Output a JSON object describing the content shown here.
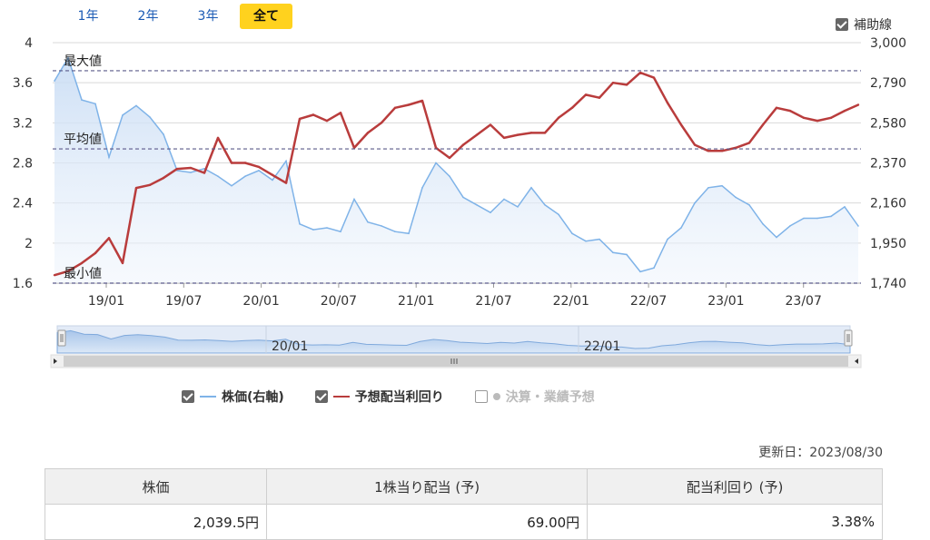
{
  "tabs": [
    {
      "label": "1年",
      "active": false
    },
    {
      "label": "2年",
      "active": false
    },
    {
      "label": "3年",
      "active": false
    },
    {
      "label": "全て",
      "active": true
    }
  ],
  "aux_lines_label": "補助線",
  "legend": {
    "stock": "株価(右軸)",
    "yield": "予想配当利回り",
    "earnings": "決算・業績予想"
  },
  "updated": "更新日：2023/08/30",
  "summary": {
    "headers": [
      "株価",
      "1株当り配当 (予)",
      "配当利回り (予)"
    ],
    "values": [
      "2,039.5円",
      "69.00円",
      "3.38%"
    ]
  },
  "colors": {
    "stock": "#7fb3e8",
    "yield": "#b93c3c",
    "tab_active": "#ffd21e"
  },
  "chart_data": {
    "type": "line",
    "left_axis": {
      "ticks": [
        "4",
        "3.6",
        "3.2",
        "2.8",
        "2.4",
        "2",
        "1.6"
      ],
      "min": 1.6,
      "max": 4
    },
    "right_axis": {
      "ticks": [
        "3,000",
        "2,790",
        "2,580",
        "2,370",
        "2,160",
        "1,950",
        "1,740"
      ],
      "min": 1740,
      "max": 3000
    },
    "x_ticks": [
      "19/01",
      "19/07",
      "20/01",
      "20/07",
      "21/01",
      "21/07",
      "22/01",
      "22/07",
      "23/01",
      "23/07"
    ],
    "navigator_labels": [
      "20/01",
      "22/01"
    ],
    "ref_lines": [
      {
        "label": "最大値",
        "value": 3.72
      },
      {
        "label": "平均値",
        "value": 2.94
      },
      {
        "label": "最小値",
        "value": 1.6
      }
    ],
    "x": [
      "18/09",
      "18/10",
      "18/11",
      "18/12",
      "19/01",
      "19/02",
      "19/03",
      "19/04",
      "19/05",
      "19/06",
      "19/07",
      "19/08",
      "19/09",
      "19/10",
      "19/11",
      "19/12",
      "20/01",
      "20/02",
      "20/03",
      "20/04",
      "20/05",
      "20/06",
      "20/07",
      "20/08",
      "20/09",
      "20/10",
      "20/11",
      "20/12",
      "21/01",
      "21/02",
      "21/03",
      "21/04",
      "21/05",
      "21/06",
      "21/07",
      "21/08",
      "21/09",
      "21/10",
      "21/11",
      "21/12",
      "22/01",
      "22/02",
      "22/03",
      "22/04",
      "22/05",
      "22/06",
      "22/07",
      "22/08",
      "22/09",
      "22/10",
      "22/11",
      "22/12",
      "23/01",
      "23/02",
      "23/03",
      "23/04",
      "23/05",
      "23/06",
      "23/07",
      "23/08"
    ],
    "series": [
      {
        "name": "株価(右軸)",
        "axis": "right",
        "values": [
          2800,
          2920,
          2700,
          2680,
          2400,
          2620,
          2670,
          2610,
          2520,
          2330,
          2320,
          2340,
          2300,
          2250,
          2300,
          2330,
          2280,
          2380,
          2050,
          2020,
          2030,
          2010,
          2180,
          2060,
          2040,
          2010,
          2000,
          2240,
          2370,
          2300,
          2190,
          2150,
          2110,
          2180,
          2140,
          2240,
          2150,
          2100,
          2000,
          1960,
          1970,
          1900,
          1890,
          1800,
          1820,
          1970,
          2030,
          2160,
          2240,
          2250,
          2190,
          2150,
          2050,
          1980,
          2040,
          2080,
          2080,
          2090,
          2140,
          2039.5
        ]
      },
      {
        "name": "予想配当利回り",
        "axis": "left",
        "values": [
          1.68,
          1.72,
          1.8,
          1.9,
          2.05,
          1.8,
          2.55,
          2.58,
          2.65,
          2.74,
          2.75,
          2.7,
          3.05,
          2.8,
          2.8,
          2.76,
          2.68,
          2.6,
          3.24,
          3.28,
          3.22,
          3.3,
          2.95,
          3.1,
          3.2,
          3.35,
          3.38,
          3.42,
          2.95,
          2.85,
          2.98,
          3.08,
          3.18,
          3.05,
          3.08,
          3.1,
          3.1,
          3.25,
          3.35,
          3.48,
          3.45,
          3.6,
          3.58,
          3.7,
          3.65,
          3.4,
          3.18,
          2.98,
          2.92,
          2.92,
          2.95,
          3.0,
          3.18,
          3.35,
          3.32,
          3.25,
          3.22,
          3.25,
          3.32,
          3.38
        ]
      }
    ]
  }
}
